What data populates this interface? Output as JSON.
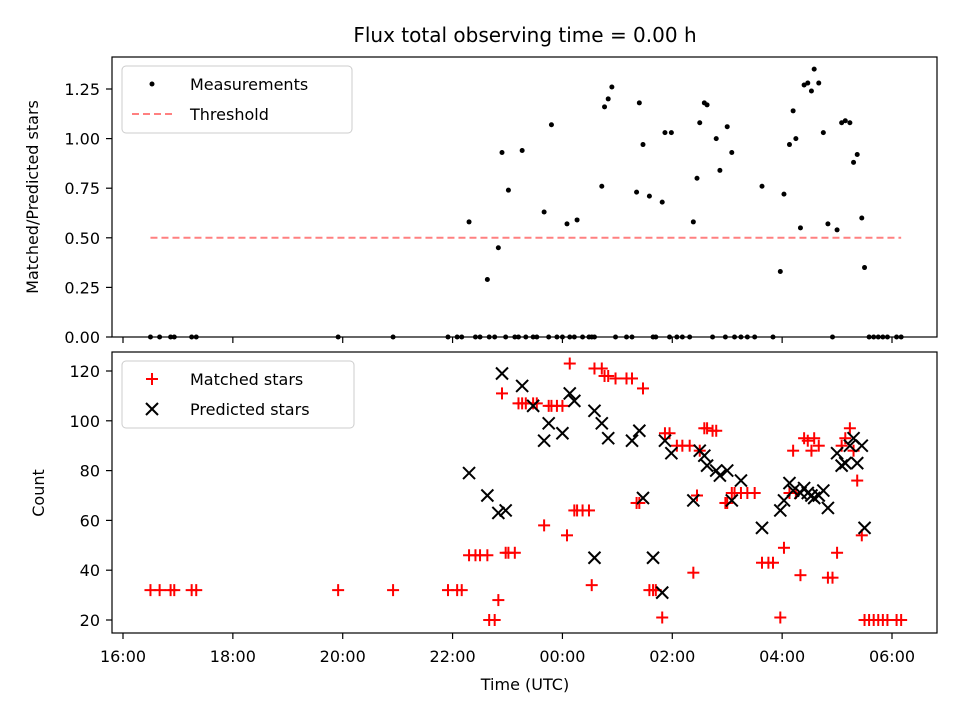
{
  "chart_data": [
    {
      "type": "scatter",
      "title": "Flux total observing time = 0.00 h",
      "xlabel": "",
      "ylabel": "Matched/Predicted stars",
      "ylim": [
        0,
        1.41
      ],
      "yticks": [
        "0.00",
        "0.25",
        "0.50",
        "0.75",
        "1.00",
        "1.25"
      ],
      "legend_position": "top-left",
      "series": [
        {
          "name": "Measurements",
          "color": "#000000",
          "marker": "dot",
          "points": [
            [
              "16:30",
              0
            ],
            [
              "16:40",
              0
            ],
            [
              "16:52",
              0
            ],
            [
              "16:56",
              0
            ],
            [
              "17:15",
              0
            ],
            [
              "17:20",
              0
            ],
            [
              "19:55",
              0
            ],
            [
              "20:55",
              0
            ],
            [
              "21:55",
              0
            ],
            [
              "22:05",
              0
            ],
            [
              "22:10",
              0
            ],
            [
              "22:18",
              0.58
            ],
            [
              "22:25",
              0
            ],
            [
              "22:30",
              0
            ],
            [
              "22:38",
              0.29
            ],
            [
              "22:40",
              0
            ],
            [
              "22:46",
              0
            ],
            [
              "22:50",
              0.45
            ],
            [
              "22:54",
              0.93
            ],
            [
              "22:58",
              0
            ],
            [
              "23:01",
              0.74
            ],
            [
              "23:08",
              0
            ],
            [
              "23:12",
              0
            ],
            [
              "23:16",
              0.94
            ],
            [
              "23:20",
              0
            ],
            [
              "23:28",
              0
            ],
            [
              "23:32",
              0
            ],
            [
              "23:40",
              0.63
            ],
            [
              "23:45",
              0
            ],
            [
              "23:48",
              1.07
            ],
            [
              "23:54",
              0
            ],
            [
              "24:00",
              0
            ],
            [
              "24:05",
              0.57
            ],
            [
              "24:08",
              0
            ],
            [
              "24:13",
              0
            ],
            [
              "24:16",
              0.59
            ],
            [
              "24:22",
              0
            ],
            [
              "24:29",
              0
            ],
            [
              "24:32",
              0
            ],
            [
              "24:35",
              0
            ],
            [
              "24:43",
              0.76
            ],
            [
              "24:46",
              1.16
            ],
            [
              "24:50",
              1.2
            ],
            [
              "24:54",
              1.26
            ],
            [
              "24:58",
              0
            ],
            [
              "25:10",
              0
            ],
            [
              "25:16",
              0
            ],
            [
              "25:21",
              0.73
            ],
            [
              "25:24",
              1.18
            ],
            [
              "25:28",
              0.97
            ],
            [
              "25:35",
              0.71
            ],
            [
              "25:39",
              0
            ],
            [
              "25:42",
              0
            ],
            [
              "25:49",
              0.68
            ],
            [
              "25:52",
              1.03
            ],
            [
              "25:57",
              0
            ],
            [
              "25:59",
              1.03
            ],
            [
              "26:05",
              0
            ],
            [
              "26:11",
              0
            ],
            [
              "26:19",
              0
            ],
            [
              "26:23",
              0.58
            ],
            [
              "26:27",
              0.8
            ],
            [
              "26:30",
              1.08
            ],
            [
              "26:35",
              1.18
            ],
            [
              "26:38",
              1.17
            ],
            [
              "26:44",
              0
            ],
            [
              "26:48",
              1.0
            ],
            [
              "26:52",
              0.84
            ],
            [
              "26:58",
              0
            ],
            [
              "27:00",
              1.06
            ],
            [
              "27:05",
              0.93
            ],
            [
              "27:08",
              0
            ],
            [
              "27:15",
              0
            ],
            [
              "27:22",
              0
            ],
            [
              "27:30",
              0
            ],
            [
              "27:38",
              0.76
            ],
            [
              "27:50",
              0
            ],
            [
              "27:58",
              0.33
            ],
            [
              "28:02",
              0.72
            ],
            [
              "28:08",
              0.97
            ],
            [
              "28:12",
              1.14
            ],
            [
              "28:15",
              1.0
            ],
            [
              "28:20",
              0.55
            ],
            [
              "28:24",
              1.27
            ],
            [
              "28:28",
              1.28
            ],
            [
              "28:32",
              1.24
            ],
            [
              "28:35",
              1.35
            ],
            [
              "28:40",
              1.28
            ],
            [
              "28:45",
              1.03
            ],
            [
              "28:50",
              0.57
            ],
            [
              "28:55",
              0
            ],
            [
              "29:00",
              0.54
            ],
            [
              "29:05",
              1.08
            ],
            [
              "29:09",
              1.09
            ],
            [
              "29:14",
              1.08
            ],
            [
              "29:18",
              0.88
            ],
            [
              "29:22",
              0.92
            ],
            [
              "29:27",
              0.6
            ],
            [
              "29:30",
              0.35
            ],
            [
              "29:35",
              0
            ],
            [
              "29:40",
              0
            ],
            [
              "29:45",
              0
            ],
            [
              "29:50",
              0
            ],
            [
              "29:55",
              0
            ],
            [
              "30:05",
              0
            ],
            [
              "30:10",
              0
            ]
          ]
        },
        {
          "name": "Threshold",
          "color": "#ff8080",
          "line": "dashed",
          "points": [
            [
              "16:30",
              0.5
            ],
            [
              "30:10",
              0.5
            ]
          ]
        }
      ]
    },
    {
      "type": "scatter",
      "title": "",
      "xlabel": "Time (UTC)",
      "ylabel": "Count",
      "ylim": [
        15,
        129
      ],
      "yticks": [
        "20",
        "40",
        "60",
        "80",
        "100",
        "120"
      ],
      "xticks": [
        "16:00",
        "18:00",
        "20:00",
        "22:00",
        "00:00",
        "02:00",
        "04:00",
        "06:00"
      ],
      "legend_position": "top-left",
      "series": [
        {
          "name": "Matched stars",
          "color": "#ff0000",
          "marker": "plus",
          "points": [
            [
              "16:30",
              32
            ],
            [
              "16:40",
              32
            ],
            [
              "16:52",
              32
            ],
            [
              "16:56",
              32
            ],
            [
              "17:15",
              32
            ],
            [
              "17:20",
              32
            ],
            [
              "19:55",
              32
            ],
            [
              "20:55",
              32
            ],
            [
              "21:55",
              32
            ],
            [
              "22:05",
              32
            ],
            [
              "22:10",
              32
            ],
            [
              "22:18",
              46
            ],
            [
              "22:25",
              46
            ],
            [
              "22:30",
              46
            ],
            [
              "22:38",
              46
            ],
            [
              "22:40",
              20
            ],
            [
              "22:46",
              20
            ],
            [
              "22:50",
              28
            ],
            [
              "22:54",
              111
            ],
            [
              "22:58",
              47
            ],
            [
              "23:01",
              47
            ],
            [
              "23:08",
              47
            ],
            [
              "23:12",
              107
            ],
            [
              "23:16",
              107
            ],
            [
              "23:20",
              107
            ],
            [
              "23:28",
              107
            ],
            [
              "23:32",
              107
            ],
            [
              "23:40",
              58
            ],
            [
              "23:45",
              106
            ],
            [
              "23:48",
              106
            ],
            [
              "23:54",
              106
            ],
            [
              "24:00",
              106
            ],
            [
              "24:05",
              54
            ],
            [
              "24:08",
              123
            ],
            [
              "24:13",
              64
            ],
            [
              "24:16",
              64
            ],
            [
              "24:22",
              64
            ],
            [
              "24:29",
              64
            ],
            [
              "24:32",
              34
            ],
            [
              "24:35",
              121
            ],
            [
              "24:43",
              121
            ],
            [
              "24:46",
              118
            ],
            [
              "24:50",
              118
            ],
            [
              "24:58",
              117
            ],
            [
              "25:10",
              117
            ],
            [
              "25:16",
              117
            ],
            [
              "25:21",
              67
            ],
            [
              "25:24",
              67
            ],
            [
              "25:28",
              113
            ],
            [
              "25:35",
              32
            ],
            [
              "25:39",
              32
            ],
            [
              "25:42",
              32
            ],
            [
              "25:49",
              21
            ],
            [
              "25:52",
              95
            ],
            [
              "25:57",
              95
            ],
            [
              "26:05",
              90
            ],
            [
              "26:11",
              90
            ],
            [
              "26:19",
              90
            ],
            [
              "26:23",
              39
            ],
            [
              "26:27",
              70
            ],
            [
              "26:30",
              88
            ],
            [
              "26:35",
              97
            ],
            [
              "26:38",
              97
            ],
            [
              "26:44",
              96
            ],
            [
              "26:48",
              96
            ],
            [
              "26:58",
              67
            ],
            [
              "27:00",
              67
            ],
            [
              "27:05",
              71
            ],
            [
              "27:08",
              71
            ],
            [
              "27:15",
              71
            ],
            [
              "27:22",
              71
            ],
            [
              "27:30",
              71
            ],
            [
              "27:38",
              43
            ],
            [
              "27:45",
              43
            ],
            [
              "27:50",
              43
            ],
            [
              "27:58",
              21
            ],
            [
              "28:02",
              49
            ],
            [
              "28:08",
              71
            ],
            [
              "28:12",
              88
            ],
            [
              "28:15",
              71
            ],
            [
              "28:20",
              38
            ],
            [
              "28:24",
              93
            ],
            [
              "28:28",
              92
            ],
            [
              "28:32",
              88
            ],
            [
              "28:35",
              93
            ],
            [
              "28:40",
              90
            ],
            [
              "28:50",
              37
            ],
            [
              "28:55",
              37
            ],
            [
              "29:00",
              47
            ],
            [
              "29:05",
              90
            ],
            [
              "29:09",
              93
            ],
            [
              "29:14",
              97
            ],
            [
              "29:18",
              88
            ],
            [
              "29:22",
              76
            ],
            [
              "29:27",
              54
            ],
            [
              "29:30",
              20
            ],
            [
              "29:35",
              20
            ],
            [
              "29:40",
              20
            ],
            [
              "29:45",
              20
            ],
            [
              "29:50",
              20
            ],
            [
              "29:55",
              20
            ],
            [
              "30:05",
              20
            ],
            [
              "30:10",
              20
            ]
          ]
        },
        {
          "name": "Predicted stars",
          "color": "#000000",
          "marker": "x",
          "points": [
            [
              "22:18",
              79
            ],
            [
              "22:38",
              70
            ],
            [
              "22:50",
              63
            ],
            [
              "22:54",
              119
            ],
            [
              "22:58",
              64
            ],
            [
              "23:16",
              114
            ],
            [
              "23:28",
              106
            ],
            [
              "23:40",
              92
            ],
            [
              "23:45",
              99
            ],
            [
              "24:00",
              95
            ],
            [
              "24:08",
              111
            ],
            [
              "24:13",
              108
            ],
            [
              "24:35",
              45
            ],
            [
              "24:35",
              104
            ],
            [
              "24:43",
              99
            ],
            [
              "24:50",
              93
            ],
            [
              "25:16",
              92
            ],
            [
              "25:24",
              96
            ],
            [
              "25:28",
              69
            ],
            [
              "25:39",
              45
            ],
            [
              "25:49",
              31
            ],
            [
              "25:52",
              92
            ],
            [
              "25:59",
              87
            ],
            [
              "26:23",
              68
            ],
            [
              "26:30",
              88
            ],
            [
              "26:35",
              86
            ],
            [
              "26:38",
              82
            ],
            [
              "26:48",
              80
            ],
            [
              "26:52",
              78
            ],
            [
              "27:00",
              80
            ],
            [
              "27:05",
              68
            ],
            [
              "27:15",
              76
            ],
            [
              "27:38",
              57
            ],
            [
              "27:58",
              64
            ],
            [
              "28:02",
              68
            ],
            [
              "28:08",
              75
            ],
            [
              "28:12",
              72
            ],
            [
              "28:20",
              71
            ],
            [
              "28:24",
              73
            ],
            [
              "28:28",
              71
            ],
            [
              "28:32",
              70
            ],
            [
              "28:35",
              69
            ],
            [
              "28:40",
              70
            ],
            [
              "28:45",
              72
            ],
            [
              "28:50",
              65
            ],
            [
              "29:00",
              87
            ],
            [
              "29:05",
              82
            ],
            [
              "29:09",
              83
            ],
            [
              "29:14",
              90
            ],
            [
              "29:18",
              93
            ],
            [
              "29:22",
              83
            ],
            [
              "29:27",
              90
            ],
            [
              "29:30",
              57
            ]
          ]
        }
      ]
    }
  ]
}
